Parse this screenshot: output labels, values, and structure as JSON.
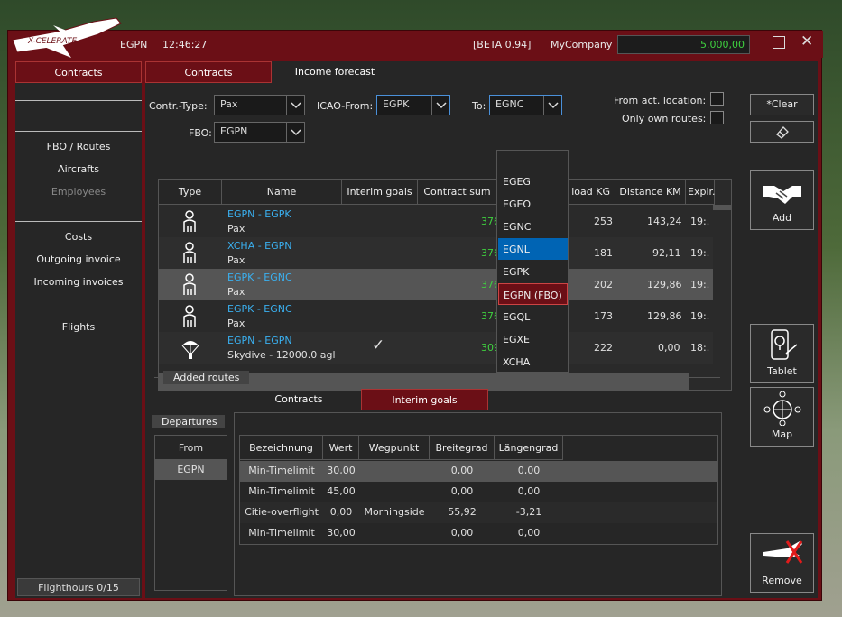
{
  "titlebar": {
    "airport": "EGPN",
    "time": "12:46:27",
    "beta": "[BETA 0.94]",
    "company": "MyCompany",
    "balance": "5.000,00"
  },
  "sidebar": {
    "header": "Contracts",
    "items": [
      "FBO / Routes",
      "Aircrafts",
      "Employees",
      "Costs",
      "Outgoing invoice",
      "Incoming invoices",
      "Flights"
    ],
    "flighthours": "Flighthours 0/15"
  },
  "tabs": {
    "contracts": "Contracts",
    "income": "Income forecast"
  },
  "filters": {
    "type_label": "Contr.-Type:",
    "type_value": "Pax",
    "icao_from_label": "ICAO-From:",
    "icao_from_value": "EGPK",
    "to_label": "To:",
    "to_value": "EGNC",
    "fbo_label": "FBO:",
    "fbo_value": "EGPN",
    "from_act_label": "From act. location:",
    "own_routes_label": "Only own routes:"
  },
  "grid": {
    "columns": [
      "Type",
      "Name",
      "Interim goals",
      "Contract sum",
      "load KG",
      "Distance KM",
      "Expir."
    ],
    "rows": [
      {
        "route": "EGPN - EGPK",
        "sub": "Pax",
        "sum": "376",
        "load": "253",
        "dist": "143,24",
        "exp": "19:.",
        "icon": "person-icon"
      },
      {
        "route": "XCHA - EGPN",
        "sub": "Pax",
        "sum": "376",
        "load": "181",
        "dist": "92,11",
        "exp": "19:.",
        "icon": "person-icon"
      },
      {
        "route": "EGPK - EGNC",
        "sub": "Pax",
        "sum": "376",
        "load": "202",
        "dist": "129,86",
        "exp": "19:.",
        "icon": "person-icon"
      },
      {
        "route": "EGPK - EGNC",
        "sub": "Pax",
        "sum": "376",
        "load": "173",
        "dist": "129,86",
        "exp": "19:.",
        "icon": "person-icon"
      },
      {
        "route": "EGPN - EGPN",
        "sub": "Skydive - 12000.0 agl",
        "sum": "309",
        "load": "222",
        "dist": "0,00",
        "exp": "18:.",
        "icon": "parachute-icon",
        "check": "✓"
      }
    ]
  },
  "dropdown": {
    "options": [
      "EGEG",
      "EGEO",
      "EGNC",
      "EGNL",
      "EGPK",
      "EGPN (FBO)",
      "EGQL",
      "EGXE",
      "XCHA"
    ]
  },
  "right_buttons": {
    "clear": "*Clear",
    "add": "Add",
    "tablet": "Tablet",
    "map": "Map",
    "remove": "Remove"
  },
  "added": {
    "section": "Added routes",
    "tab_contracts": "Contracts",
    "tab_interim": "Interim goals",
    "departures": "Departures",
    "from_header": "From",
    "from_value": "EGPN",
    "columns": [
      "Bezeichnung",
      "Wert",
      "Wegpunkt",
      "Breitegrad",
      "Längengrad"
    ],
    "rows": [
      [
        "Min-Timelimit",
        "30,00",
        "",
        "0,00",
        "0,00"
      ],
      [
        "Min-Timelimit",
        "45,00",
        "",
        "0,00",
        "0,00"
      ],
      [
        "Citie-overflight",
        "0,00",
        "Morningside",
        "55,92",
        "-3,21"
      ],
      [
        "Min-Timelimit",
        "30,00",
        "",
        "0,00",
        "0,00"
      ]
    ]
  }
}
